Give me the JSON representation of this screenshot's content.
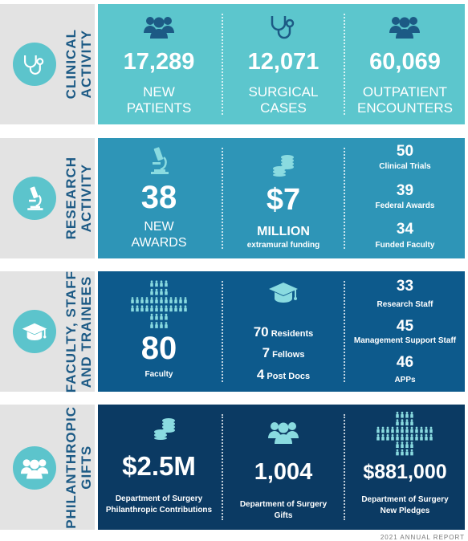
{
  "sections": [
    {
      "label_line1": "CLINICAL",
      "label_line2": "ACTIVITY",
      "icon": "stethoscope-icon",
      "stats": [
        {
          "value": "17,289",
          "caption_line1": "NEW",
          "caption_line2": "PATIENTS",
          "icon": "people-group-icon"
        },
        {
          "value": "12,071",
          "caption_line1": "SURGICAL",
          "caption_line2": "CASES",
          "icon": "stethoscope-icon"
        },
        {
          "value": "60,069",
          "caption_line1": "OUTPATIENT",
          "caption_line2": "ENCOUNTERS",
          "icon": "people-group-icon"
        }
      ]
    },
    {
      "label_line1": "RESEARCH",
      "label_line2": "ACTIVITY",
      "icon": "microscope-icon",
      "stat1": {
        "value": "38",
        "caption_line1": "NEW",
        "caption_line2": "AWARDS",
        "icon": "microscope-icon"
      },
      "stat2": {
        "value": "$7",
        "caption_line1": "MILLION",
        "caption_line2": "extramural funding",
        "icon": "coin-stack-icon"
      },
      "list": [
        {
          "value": "50",
          "caption": "Clinical Trials"
        },
        {
          "value": "39",
          "caption": "Federal Awards"
        },
        {
          "value": "34",
          "caption": "Funded Faculty"
        }
      ]
    },
    {
      "label_line1": "FACULTY, STAFF",
      "label_line2": "AND TRAINEES",
      "icon": "graduation-cap-icon",
      "stat1": {
        "value": "80",
        "caption": "Faculty",
        "icon": "people-cross-icon"
      },
      "trainees": [
        {
          "value": "70",
          "caption": "Residents"
        },
        {
          "value": "7",
          "caption": "Fellows"
        },
        {
          "value": "4",
          "caption": "Post Docs"
        }
      ],
      "list": [
        {
          "value": "33",
          "caption": "Research Staff"
        },
        {
          "value": "45",
          "caption": "Management Support Staff"
        },
        {
          "value": "46",
          "caption": "APPs"
        }
      ]
    },
    {
      "label_line1": "PHILANTHROPIC",
      "label_line2": "GIFTS",
      "icon": "people-group-icon",
      "stats": [
        {
          "value": "$2.5M",
          "caption_line1": "Department of Surgery",
          "caption_line2": "Philanthropic Contributions",
          "icon": "coin-stack-icon"
        },
        {
          "value": "1,004",
          "caption_line1": "Department of Surgery",
          "caption_line2": "Gifts",
          "icon": "people-group-icon"
        },
        {
          "value": "$881,000",
          "caption_line1": "Department of Surgery",
          "caption_line2": "New Pledges",
          "icon": "people-cross-icon"
        }
      ]
    }
  ],
  "colors": {
    "clinical": "#5cc6cd",
    "research": "#2e95b7",
    "faculty": "#0d5a8c",
    "philanthropic": "#0b3a63",
    "icon_dark": "#1c5a85",
    "icon_light": "#8adbe0"
  },
  "footer": "2021 ANNUAL REPORT"
}
